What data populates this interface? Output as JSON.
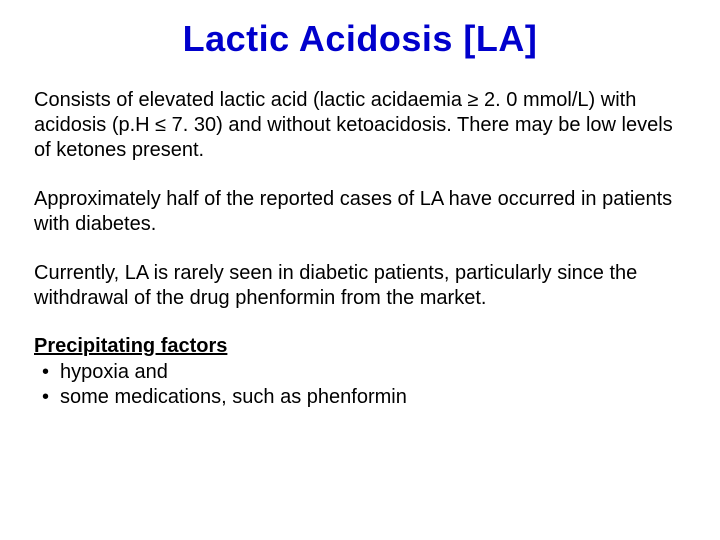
{
  "title": "Lactic Acidosis [LA]",
  "title_color": "#0000cc",
  "title_fontsize": 36,
  "body_fontsize": 20,
  "body_color": "#000000",
  "background_color": "#ffffff",
  "paragraphs": [
    "Consists of elevated lactic acid (lactic acidaemia ≥ 2. 0 mmol/L) with acidosis (p.H ≤ 7. 30) and without ketoacidosis. There may be low levels of ketones present.",
    "Approximately  half of the reported cases of LA have occurred in patients with diabetes.",
    "Currently, LA is rarely seen in diabetic patients, particularly since the withdrawal of the drug phenformin from the market."
  ],
  "subheading": "Precipitating factors",
  "bullets": [
    "hypoxia and",
    "some medications, such as phenformin"
  ]
}
